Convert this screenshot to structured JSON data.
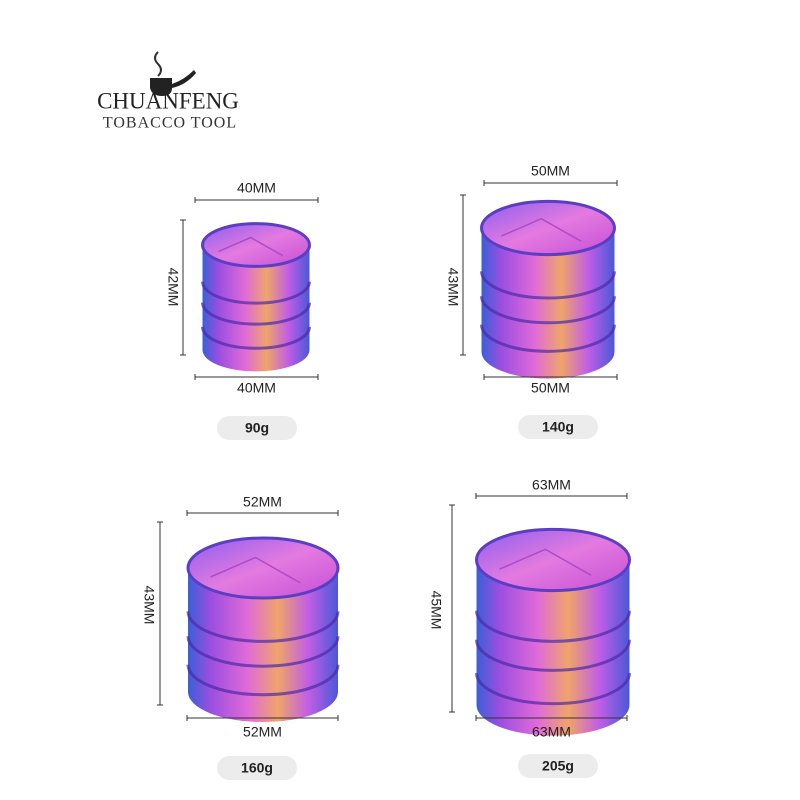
{
  "brand": {
    "name": "CHUANFENG",
    "tagline": "TOBACCO TOOL"
  },
  "products": [
    {
      "top_width": "40MM",
      "height": "42MM",
      "bottom_width": "40MM",
      "weight": "90g"
    },
    {
      "top_width": "50MM",
      "height": "43MM",
      "bottom_width": "50MM",
      "weight": "140g"
    },
    {
      "top_width": "52MM",
      "height": "43MM",
      "bottom_width": "52MM",
      "weight": "160g"
    },
    {
      "top_width": "63MM",
      "height": "45MM",
      "bottom_width": "63MM",
      "weight": "205g"
    }
  ]
}
